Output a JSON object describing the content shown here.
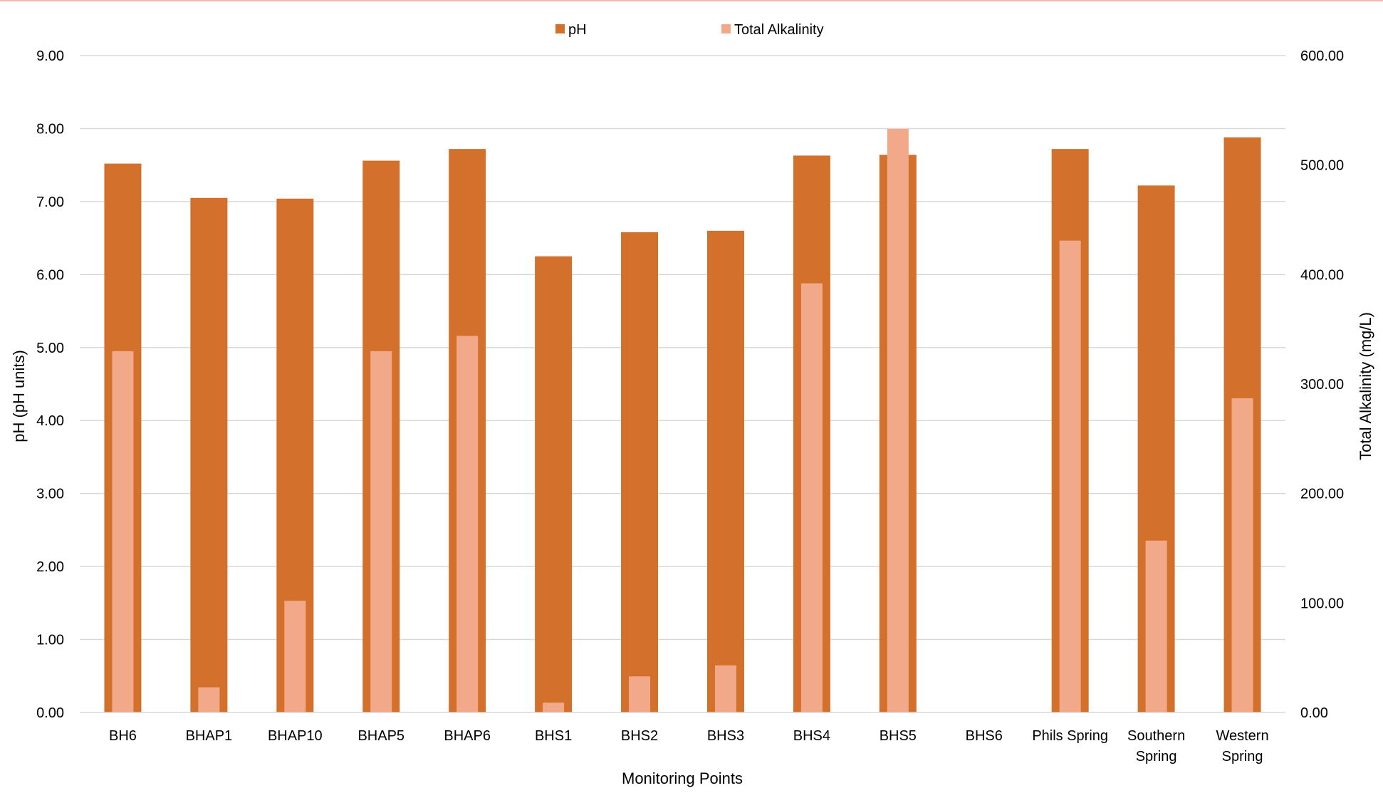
{
  "chart_data": {
    "type": "bar",
    "categories": [
      "BH6",
      "BHAP1",
      "BHAP10",
      "BHAP5",
      "BHAP6",
      "BHS1",
      "BHS2",
      "BHS3",
      "BHS4",
      "BHS5",
      "BHS6",
      "Phils Spring",
      "Southern Spring",
      "Western Spring"
    ],
    "series": [
      {
        "name": "pH",
        "axis": "left",
        "color": "#D2702C",
        "values": [
          7.52,
          7.05,
          7.04,
          7.56,
          7.72,
          6.25,
          6.58,
          6.6,
          7.63,
          7.64,
          null,
          7.72,
          7.22,
          7.88
        ]
      },
      {
        "name": "Total Alkalinity",
        "axis": "right",
        "color": "#F2A98A",
        "values": [
          330,
          23,
          102,
          330,
          344,
          9,
          33,
          43,
          392,
          533,
          null,
          431,
          157,
          287
        ]
      }
    ],
    "xlabel": "Monitoring Points",
    "ylabel": "pH (pH units)",
    "y2label": "Total Alkalinity (mg/L)",
    "ylim": [
      0,
      9
    ],
    "y2lim": [
      0,
      600
    ],
    "yticks": [
      "0.00",
      "1.00",
      "2.00",
      "3.00",
      "4.00",
      "5.00",
      "6.00",
      "7.00",
      "8.00",
      "9.00"
    ],
    "y2ticks": [
      "0.00",
      "100.00",
      "200.00",
      "300.00",
      "400.00",
      "500.00",
      "600.00"
    ],
    "grid": true,
    "legend_position": "top-center",
    "gridline_color": "#D9D9D9",
    "accent_line_color": "#F4B8B0"
  }
}
